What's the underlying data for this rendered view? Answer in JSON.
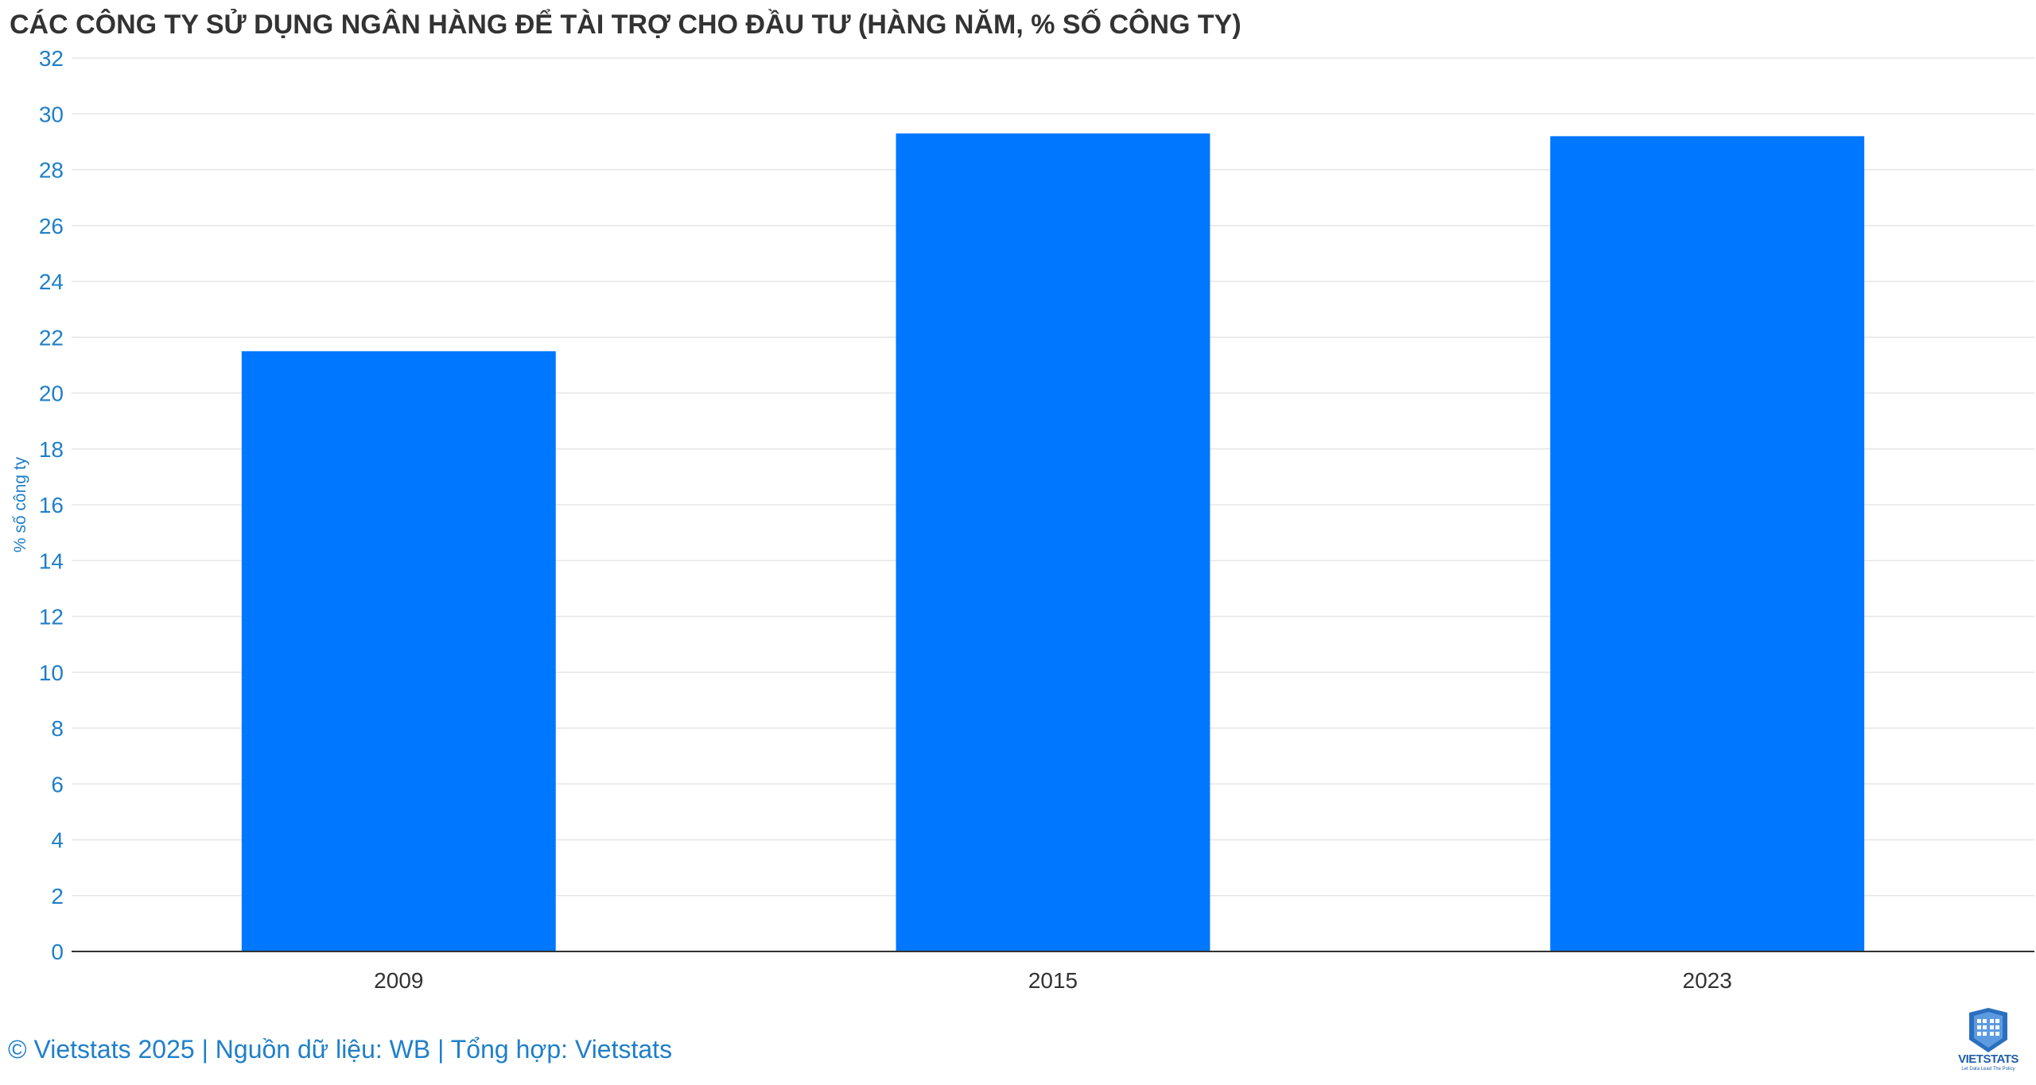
{
  "chart_data": {
    "type": "bar",
    "title": "CÁC CÔNG TY SỬ DỤNG NGÂN HÀNG ĐỂ TÀI TRỢ CHO ĐẦU TƯ (HÀNG NĂM, % SỐ CÔNG TY)",
    "categories": [
      "2009",
      "2015",
      "2023"
    ],
    "values": [
      21.5,
      29.3,
      29.2
    ],
    "ylabel": "% số công ty",
    "xlabel": "",
    "ylim": [
      0,
      32
    ],
    "yticks": [
      0,
      2,
      4,
      6,
      8,
      10,
      12,
      14,
      16,
      18,
      20,
      22,
      24,
      26,
      28,
      30,
      32
    ],
    "grid": true,
    "bar_color": "#0077ff",
    "legend": "none"
  },
  "footer": {
    "source": "© Vietstats 2025 | Nguồn dữ liệu: WB | Tổng hợp: Vietstats"
  },
  "logo": {
    "name": "VIETSTATS",
    "tagline": "Let Data Lead The Policy",
    "icon": "building-shield-logo"
  },
  "colors": {
    "title": "#333333",
    "axis_text": "#1f7fc9",
    "category_text": "#333333",
    "grid": "#e6e6e6",
    "bar": "#0077ff"
  }
}
